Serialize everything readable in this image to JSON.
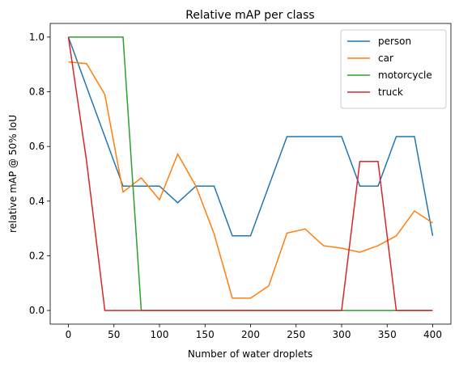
{
  "chart_data": {
    "type": "line",
    "title": "Relative mAP per class",
    "xlabel": "Number of water droplets",
    "ylabel": "relative mAP @ 50% IoU",
    "x": [
      0,
      20,
      40,
      60,
      80,
      100,
      120,
      140,
      160,
      180,
      200,
      220,
      240,
      260,
      280,
      300,
      320,
      340,
      360,
      380,
      400
    ],
    "series": [
      {
        "name": "person",
        "color": "#1f77b4",
        "values": [
          1.0,
          0.818,
          0.636,
          0.455,
          0.455,
          0.455,
          0.394,
          0.455,
          0.455,
          0.273,
          0.273,
          0.455,
          0.636,
          0.636,
          0.636,
          0.636,
          0.455,
          0.455,
          0.636,
          0.636,
          0.273
        ]
      },
      {
        "name": "car",
        "color": "#ff7f0e",
        "values": [
          0.909,
          0.903,
          0.79,
          0.433,
          0.485,
          0.405,
          0.572,
          0.455,
          0.28,
          0.045,
          0.045,
          0.09,
          0.283,
          0.298,
          0.237,
          0.228,
          0.213,
          0.237,
          0.273,
          0.364,
          0.32
        ]
      },
      {
        "name": "motorcycle",
        "color": "#2ca02c",
        "values": [
          1.0,
          1.0,
          1.0,
          1.0,
          0,
          0,
          0,
          0,
          0,
          0,
          0,
          0,
          0,
          0,
          0,
          0,
          0,
          0,
          0,
          0,
          0
        ]
      },
      {
        "name": "truck",
        "color": "#d62728",
        "values": [
          1.0,
          0.545,
          0,
          0,
          0,
          0,
          0,
          0,
          0,
          0,
          0,
          0,
          0,
          0,
          0,
          0,
          0.545,
          0.545,
          0,
          0,
          0
        ]
      }
    ],
    "xlim": [
      -20,
      420
    ],
    "ylim": [
      -0.05,
      1.05
    ],
    "xticks": [
      0,
      50,
      100,
      150,
      200,
      250,
      300,
      350,
      400
    ],
    "yticks": [
      {
        "value": 0,
        "label": "0.0"
      },
      0.2,
      0.4,
      0.6,
      0.8,
      {
        "value": 1,
        "label": "1.0"
      }
    ],
    "grid": false,
    "legend": "upper right"
  }
}
